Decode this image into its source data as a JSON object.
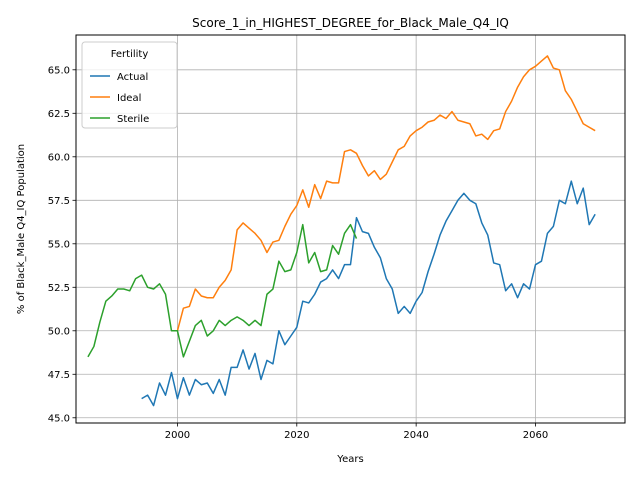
{
  "chart_data": {
    "type": "line",
    "title": "Score_1_in_HIGHEST_DEGREE_for_Black_Male_Q4_IQ",
    "xlabel": "Years",
    "ylabel": "% of Black_Male Q4_IQ Population",
    "xlim": [
      1983,
      2075
    ],
    "ylim": [
      44.7,
      67.0
    ],
    "xticks": [
      2000,
      2020,
      2040,
      2060
    ],
    "yticks": [
      45.0,
      47.5,
      50.0,
      52.5,
      55.0,
      57.5,
      60.0,
      62.5,
      65.0
    ],
    "ytick_labels": [
      "45.0",
      "47.5",
      "50.0",
      "52.5",
      "55.0",
      "57.5",
      "60.0",
      "62.5",
      "65.0"
    ],
    "grid": true,
    "legend": {
      "title": "Fertility",
      "placement": "top-left"
    },
    "series": [
      {
        "name": "Actual",
        "color": "#1f77b4",
        "x": [
          1994,
          1995,
          1996,
          1997,
          1998,
          1999,
          2000,
          2001,
          2002,
          2003,
          2004,
          2005,
          2006,
          2007,
          2008,
          2009,
          2010,
          2011,
          2012,
          2013,
          2014,
          2015,
          2016,
          2017,
          2018,
          2019,
          2020,
          2021,
          2022,
          2023,
          2024,
          2025,
          2026,
          2027,
          2028,
          2029,
          2030,
          2031,
          2032,
          2033,
          2034,
          2035,
          2036,
          2037,
          2038,
          2039,
          2040,
          2041,
          2042,
          2043,
          2044,
          2045,
          2046,
          2047,
          2048,
          2049,
          2050,
          2051,
          2052,
          2053,
          2054,
          2055,
          2056,
          2057,
          2058,
          2059,
          2060,
          2061,
          2062,
          2063,
          2064,
          2065,
          2066,
          2067,
          2068,
          2069,
          2070
        ],
        "values": [
          46.1,
          46.3,
          45.7,
          47.0,
          46.3,
          47.6,
          46.1,
          47.3,
          46.3,
          47.2,
          46.9,
          47.0,
          46.4,
          47.2,
          46.3,
          47.9,
          47.9,
          48.9,
          47.8,
          48.7,
          47.2,
          48.3,
          48.1,
          50.0,
          49.2,
          49.7,
          50.2,
          51.7,
          51.6,
          52.1,
          52.8,
          53.0,
          53.5,
          53.0,
          53.8,
          53.8,
          56.5,
          55.7,
          55.6,
          54.8,
          54.2,
          53.0,
          52.4,
          51.0,
          51.4,
          51.0,
          51.7,
          52.2,
          53.4,
          54.4,
          55.5,
          56.3,
          56.9,
          57.5,
          57.9,
          57.5,
          57.3,
          56.2,
          55.5,
          53.9,
          53.8,
          52.3,
          52.7,
          51.9,
          52.7,
          52.4,
          53.8,
          54.0,
          55.6,
          56.0,
          57.5,
          57.3,
          58.6,
          57.3,
          58.2,
          56.1,
          56.7
        ]
      },
      {
        "name": "Ideal",
        "color": "#ff7f0e",
        "x": [
          2000,
          2001,
          2002,
          2003,
          2004,
          2005,
          2006,
          2007,
          2008,
          2009,
          2010,
          2011,
          2012,
          2013,
          2014,
          2015,
          2016,
          2017,
          2018,
          2019,
          2020,
          2021,
          2022,
          2023,
          2024,
          2025,
          2026,
          2027,
          2028,
          2029,
          2030,
          2031,
          2032,
          2033,
          2034,
          2035,
          2036,
          2037,
          2038,
          2039,
          2040,
          2041,
          2042,
          2043,
          2044,
          2045,
          2046,
          2047,
          2048,
          2049,
          2050,
          2051,
          2052,
          2053,
          2054,
          2055,
          2056,
          2057,
          2058,
          2059,
          2060,
          2061,
          2062,
          2063,
          2064,
          2065,
          2066,
          2067,
          2068,
          2069,
          2070
        ],
        "values": [
          50.0,
          51.3,
          51.4,
          52.4,
          52.0,
          51.9,
          51.9,
          52.5,
          52.9,
          53.5,
          55.8,
          56.2,
          55.9,
          55.6,
          55.2,
          54.5,
          55.1,
          55.2,
          56.0,
          56.7,
          57.2,
          58.1,
          57.1,
          58.4,
          57.6,
          58.6,
          58.5,
          58.5,
          60.3,
          60.4,
          60.2,
          59.5,
          58.9,
          59.2,
          58.7,
          59.0,
          59.7,
          60.4,
          60.6,
          61.2,
          61.5,
          61.7,
          62.0,
          62.1,
          62.4,
          62.2,
          62.6,
          62.1,
          62.0,
          61.9,
          61.2,
          61.3,
          61.0,
          61.5,
          61.6,
          62.6,
          63.2,
          64.0,
          64.6,
          65.0,
          65.2,
          65.5,
          65.8,
          65.1,
          65.0,
          63.8,
          63.3,
          62.6,
          61.9,
          61.7,
          61.5
        ]
      },
      {
        "name": "Sterile",
        "color": "#2ca02c",
        "x": [
          1985,
          1986,
          1987,
          1988,
          1989,
          1990,
          1991,
          1992,
          1993,
          1994,
          1995,
          1996,
          1997,
          1998,
          1999,
          2000,
          2001,
          2002,
          2003,
          2004,
          2005,
          2006,
          2007,
          2008,
          2009,
          2010,
          2011,
          2012,
          2013,
          2014,
          2015,
          2016,
          2017,
          2018,
          2019,
          2020,
          2021,
          2022,
          2023,
          2024,
          2025,
          2026,
          2027,
          2028,
          2029,
          2030
        ],
        "values": [
          48.5,
          49.1,
          50.5,
          51.7,
          52.0,
          52.4,
          52.4,
          52.3,
          53.0,
          53.2,
          52.5,
          52.4,
          52.7,
          52.1,
          50.0,
          50.0,
          48.5,
          49.4,
          50.3,
          50.6,
          49.7,
          50.0,
          50.6,
          50.3,
          50.6,
          50.8,
          50.6,
          50.3,
          50.6,
          50.3,
          52.1,
          52.4,
          54.0,
          53.4,
          53.5,
          54.5,
          56.1,
          53.9,
          54.5,
          53.4,
          53.5,
          54.9,
          54.4,
          55.6,
          56.1,
          55.3
        ]
      }
    ]
  }
}
